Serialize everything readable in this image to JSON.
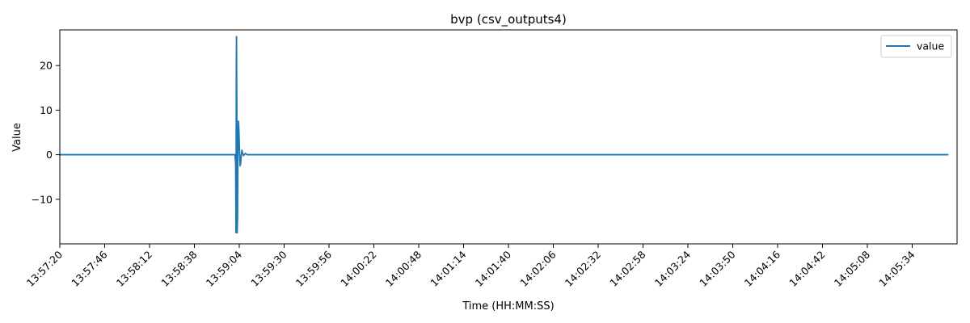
{
  "chart_data": {
    "type": "line",
    "title": "bvp (csv_outputs4)",
    "xlabel": "Time (HH:MM:SS)",
    "ylabel": "Value",
    "x_unit": "time",
    "xlim": [
      "13:57:20",
      "14:06:00"
    ],
    "ylim": [
      -20.0,
      28.0
    ],
    "x_ticks": [
      "13:57:20",
      "13:57:46",
      "13:58:12",
      "13:58:38",
      "13:59:04",
      "13:59:30",
      "13:59:56",
      "14:00:22",
      "14:00:48",
      "14:01:14",
      "14:01:40",
      "14:02:06",
      "14:02:32",
      "14:02:58",
      "14:03:24",
      "14:03:50",
      "14:04:16",
      "14:04:42",
      "14:05:08",
      "14:05:34"
    ],
    "y_ticks": [
      -10,
      0,
      10,
      20
    ],
    "y_tick_labels": [
      "−10",
      "0",
      "10",
      "20"
    ],
    "grid": false,
    "legend": "top-right",
    "colors": {
      "line": "#1f77b4",
      "axis": "#000000"
    },
    "series": [
      {
        "name": "value",
        "points": [
          [
            "13:57:20",
            0.0
          ],
          [
            "13:58:30",
            0.0
          ],
          [
            "13:59:01.5",
            0.0
          ],
          [
            "13:59:01.9",
            -2.0
          ],
          [
            "13:59:02.1",
            -17.5
          ],
          [
            "13:59:02.3",
            20.0
          ],
          [
            "13:59:02.4",
            26.5
          ],
          [
            "13:59:02.6",
            10.0
          ],
          [
            "13:59:02.8",
            -17.5
          ],
          [
            "13:59:03.0",
            -14.0
          ],
          [
            "13:59:03.2",
            0.0
          ],
          [
            "13:59:03.4",
            6.0
          ],
          [
            "13:59:03.6",
            7.5
          ],
          [
            "13:59:03.9",
            4.0
          ],
          [
            "13:59:04.2",
            0.0
          ],
          [
            "13:59:04.5",
            -2.5
          ],
          [
            "13:59:04.8",
            -2.0
          ],
          [
            "13:59:05.2",
            0.0
          ],
          [
            "13:59:05.5",
            1.0
          ],
          [
            "13:59:06.0",
            0.2
          ],
          [
            "13:59:06.5",
            -0.2
          ],
          [
            "13:59:07.5",
            0.3
          ],
          [
            "13:59:08.5",
            0.0
          ],
          [
            "14:00:00",
            0.0
          ],
          [
            "14:03:00",
            0.0
          ],
          [
            "14:05:55",
            0.0
          ]
        ]
      }
    ]
  }
}
